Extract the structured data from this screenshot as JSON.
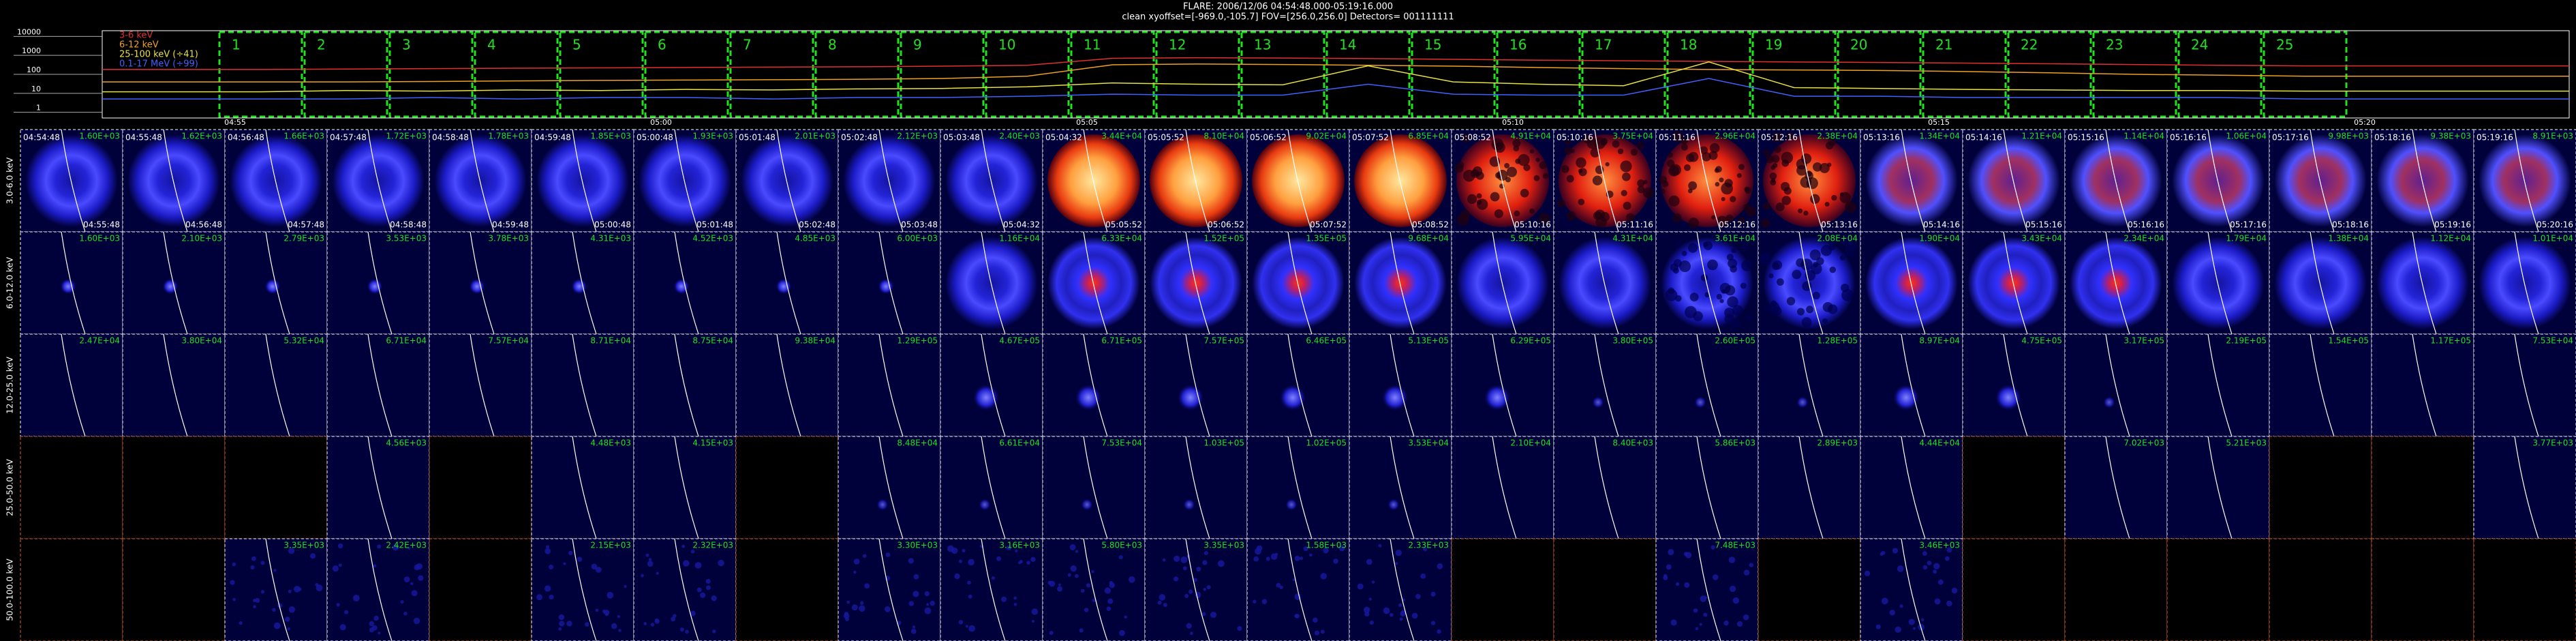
{
  "header": {
    "title": "FLARE: 2006/12/06 04:54:48.000-05:19:16.000",
    "subtitle": "clean    xyoffset=[-969.0,-105.7]    FOV=[256.0,256.0]    Detectors= 001111111"
  },
  "chart_data": {
    "type": "line",
    "categories": [
      "1",
      "2",
      "3",
      "4",
      "5",
      "6",
      "7",
      "8",
      "9",
      "10",
      "11",
      "12",
      "13",
      "14",
      "15",
      "16",
      "17",
      "18",
      "19",
      "20",
      "21",
      "22",
      "23",
      "24",
      "25"
    ],
    "series": [
      {
        "name": "3-6 keV",
        "color": "#e03030",
        "values": [
          180,
          190,
          200,
          210,
          220,
          230,
          240,
          250,
          270,
          300,
          700,
          750,
          720,
          680,
          620,
          560,
          520,
          480,
          450,
          420,
          390,
          360,
          330,
          300,
          280
        ]
      },
      {
        "name": "6-12 keV",
        "color": "#f0a020",
        "values": [
          40,
          40,
          42,
          45,
          48,
          50,
          52,
          55,
          60,
          80,
          320,
          350,
          330,
          300,
          270,
          230,
          200,
          180,
          170,
          160,
          140,
          120,
          100,
          90,
          80
        ]
      },
      {
        "name": "25-100 keV (÷41)",
        "color": "#e8e040",
        "values": [
          12,
          14,
          13,
          15,
          14,
          16,
          15,
          17,
          18,
          22,
          35,
          30,
          28,
          280,
          40,
          30,
          25,
          450,
          20,
          18,
          16,
          15,
          14,
          14,
          13
        ]
      },
      {
        "name": "0.1-17 MeV (÷99)",
        "color": "#4060ff",
        "values": [
          5,
          5,
          6,
          5,
          6,
          6,
          5,
          6,
          6,
          7,
          9,
          8,
          8,
          30,
          9,
          8,
          8,
          60,
          7,
          7,
          6,
          6,
          6,
          6,
          5
        ]
      }
    ],
    "ylim": [
      0.5,
      20000
    ],
    "yticks": [
      1,
      10,
      100,
      1000,
      10000
    ],
    "log": true,
    "time_labels": [
      "04:55",
      "05:00",
      "05:05",
      "05:10",
      "05:15",
      "05:20"
    ]
  },
  "image_grid": {
    "intervals": [
      {
        "start": "04:54:48",
        "end": "04:55:48"
      },
      {
        "start": "04:55:48",
        "end": "04:56:48"
      },
      {
        "start": "04:56:48",
        "end": "04:57:48"
      },
      {
        "start": "04:57:48",
        "end": "04:58:48"
      },
      {
        "start": "04:58:48",
        "end": "04:59:48"
      },
      {
        "start": "04:59:48",
        "end": "05:00:48"
      },
      {
        "start": "05:00:48",
        "end": "05:01:48"
      },
      {
        "start": "05:01:48",
        "end": "05:02:48"
      },
      {
        "start": "05:02:48",
        "end": "05:03:48"
      },
      {
        "start": "05:03:48",
        "end": "05:04:32"
      },
      {
        "start": "05:04:32",
        "end": "05:05:52"
      },
      {
        "start": "05:05:52",
        "end": "05:06:52"
      },
      {
        "start": "05:06:52",
        "end": "05:07:52"
      },
      {
        "start": "05:07:52",
        "end": "05:08:52"
      },
      {
        "start": "05:08:52",
        "end": "05:10:16"
      },
      {
        "start": "05:10:16",
        "end": "05:11:16"
      },
      {
        "start": "05:11:16",
        "end": "05:12:16"
      },
      {
        "start": "05:12:16",
        "end": "05:13:16"
      },
      {
        "start": "05:13:16",
        "end": "05:14:16"
      },
      {
        "start": "05:14:16",
        "end": "05:15:16"
      },
      {
        "start": "05:15:16",
        "end": "05:16:16"
      },
      {
        "start": "05:16:16",
        "end": "05:17:16"
      },
      {
        "start": "05:17:16",
        "end": "05:18:16"
      },
      {
        "start": "05:18:16",
        "end": "05:19:16"
      },
      {
        "start": "05:19:16",
        "end": "05:20:16"
      }
    ],
    "rows": [
      {
        "band": "3.0-6.0 keV",
        "styles": [
          "ring",
          "ring",
          "ring",
          "ring",
          "ring",
          "ring",
          "ring",
          "ring",
          "ring",
          "ring",
          "hot",
          "hot",
          "hot",
          "hot",
          "speckle",
          "speckle",
          "speckle",
          "speckle",
          "purple",
          "purple",
          "purple",
          "purple",
          "purple",
          "purple",
          "purple"
        ],
        "peaks": [
          "1.60E+03",
          "1.62E+03",
          "1.66E+03",
          "1.72E+03",
          "1.78E+03",
          "1.85E+03",
          "1.93E+03",
          "2.01E+03",
          "2.12E+03",
          "2.40E+03",
          "3.44E+04",
          "8.10E+04",
          "9.02E+04",
          "6.85E+04",
          "4.91E+04",
          "3.75E+04",
          "2.96E+04",
          "2.38E+04",
          "1.34E+04",
          "1.21E+04",
          "1.14E+04",
          "1.06E+04",
          "9.98E+03",
          "9.38E+03",
          "8.91E+03"
        ]
      },
      {
        "band": "6.0-12.0 keV",
        "styles": [
          "dot",
          "dot",
          "dot",
          "dot",
          "dot",
          "dot",
          "dot",
          "dot",
          "dot",
          "ring",
          "core",
          "core",
          "core",
          "core",
          "ring",
          "ring",
          "speckleblue",
          "speckleblue",
          "core",
          "core",
          "core",
          "ring",
          "ring",
          "ring",
          "ring"
        ],
        "peaks": [
          "1.60E+03",
          "2.10E+03",
          "2.79E+03",
          "3.53E+03",
          "3.78E+03",
          "4.31E+03",
          "4.52E+03",
          "4.85E+03",
          "6.00E+03",
          "1.16E+04",
          "6.33E+04",
          "1.52E+05",
          "1.35E+05",
          "9.68E+04",
          "5.95E+04",
          "4.31E+04",
          "3.61E+04",
          "2.08E+04",
          "1.90E+04",
          "3.43E+04",
          "2.34E+04",
          "1.79E+04",
          "1.38E+04",
          "1.12E+04",
          "1.01E+04"
        ]
      },
      {
        "band": "12.0-25.0 keV",
        "styles": [
          "empty",
          "empty",
          "empty",
          "empty",
          "empty",
          "empty",
          "empty",
          "empty",
          "empty",
          "blob",
          "blob",
          "blob",
          "blob",
          "blob",
          "blob",
          "faint",
          "faint",
          "faint",
          "blob",
          "blob",
          "faint",
          "empty",
          "empty",
          "empty",
          "empty"
        ],
        "peaks": [
          "2.47E+04",
          "3.80E+04",
          "5.32E+04",
          "6.71E+04",
          "7.57E+04",
          "8.71E+04",
          "8.75E+04",
          "9.38E+04",
          "1.29E+05",
          "4.67E+05",
          "6.71E+05",
          "7.57E+05",
          "6.46E+05",
          "5.13E+05",
          "6.29E+05",
          "3.80E+05",
          "2.60E+05",
          "1.28E+05",
          "8.97E+04",
          "4.75E+05",
          "3.17E+05",
          "2.19E+05",
          "1.54E+05",
          "1.17E+05",
          "7.53E+04"
        ]
      },
      {
        "band": "25.0-50.0 keV",
        "styles": [
          "black",
          "black",
          "black",
          "empty",
          "black",
          "empty",
          "empty",
          "black",
          "faint",
          "faint",
          "faint",
          "faint",
          "faint",
          "faint",
          "empty",
          "empty",
          "empty",
          "empty",
          "empty",
          "black",
          "empty",
          "empty",
          "black",
          "black",
          "empty"
        ],
        "peaks": [
          null,
          null,
          null,
          "4.56E+03",
          null,
          "4.48E+03",
          "4.15E+03",
          null,
          "8.48E+04",
          "6.61E+04",
          "7.53E+04",
          "1.03E+05",
          "1.02E+05",
          "3.53E+04",
          "2.10E+04",
          "8.40E+03",
          "5.86E+03",
          "2.89E+03",
          "4.44E+04",
          null,
          "7.02E+03",
          "5.21E+03",
          null,
          null,
          "3.77E+03"
        ]
      },
      {
        "band": "50.0-100.0 keV",
        "styles": [
          "black",
          "black",
          "noise",
          "noise",
          "black",
          "noise",
          "noise",
          "black",
          "noise",
          "noise",
          "noise",
          "noise",
          "noise",
          "noise",
          "black",
          "black",
          "noise",
          "black",
          "noise",
          "black",
          "black",
          "black",
          "black",
          "black",
          "black"
        ],
        "peaks": [
          null,
          null,
          "3.35E+03",
          "2.42E+03",
          null,
          "2.15E+03",
          "2.32E+03",
          null,
          "3.30E+03",
          "3.16E+03",
          "5.80E+03",
          "3.35E+03",
          "1.58E+03",
          "2.33E+03",
          null,
          null,
          "7.48E+03",
          null,
          "3.46E+03",
          null,
          null,
          null,
          null,
          null,
          null
        ]
      }
    ]
  }
}
